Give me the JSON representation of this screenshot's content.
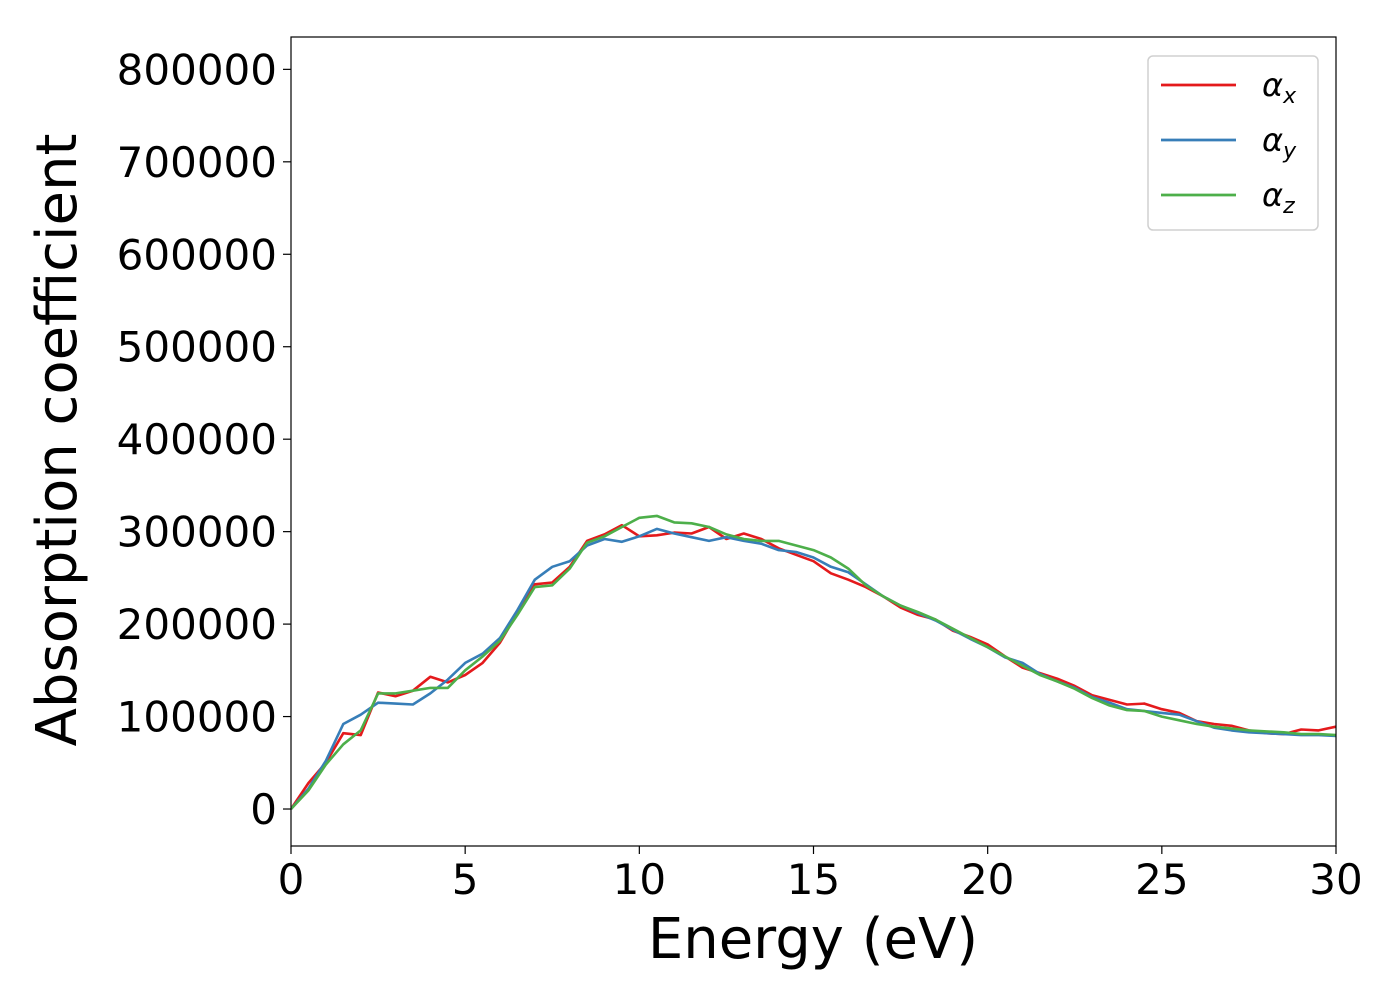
{
  "chart_data": {
    "type": "line",
    "title": "",
    "xlabel": "Energy (eV)",
    "ylabel": "Absorption coefficient",
    "xlim": [
      0,
      30
    ],
    "ylim": [
      -40000,
      835000
    ],
    "xticks": [
      0,
      5,
      10,
      15,
      20,
      25,
      30
    ],
    "yticks": [
      0,
      100000,
      200000,
      300000,
      400000,
      500000,
      600000,
      700000,
      800000
    ],
    "grid": false,
    "legend_position": "top-right",
    "x": [
      0,
      0.5,
      1,
      1.5,
      2,
      2.5,
      3,
      3.5,
      4,
      4.5,
      5,
      5.5,
      6,
      6.5,
      7,
      7.5,
      8,
      8.5,
      9,
      9.5,
      10,
      10.5,
      11,
      11.5,
      12,
      12.5,
      13,
      13.5,
      14,
      14.5,
      15,
      15.5,
      16,
      16.5,
      17,
      17.5,
      18,
      18.5,
      19,
      19.5,
      20,
      20.5,
      21,
      21.5,
      22,
      22.5,
      23,
      23.5,
      24,
      24.5,
      25,
      25.5,
      26,
      26.5,
      27,
      27.5,
      28,
      28.5,
      29,
      29.5,
      30
    ],
    "series": [
      {
        "name": "α",
        "subscript": "x",
        "color": "#e41a1c",
        "values": [
          0,
          28000,
          50000,
          82000,
          80000,
          126000,
          122000,
          128000,
          143000,
          137000,
          145000,
          158000,
          180000,
          212000,
          243000,
          245000,
          262000,
          290000,
          297000,
          307000,
          295000,
          296000,
          299000,
          298000,
          305000,
          292000,
          298000,
          292000,
          282000,
          275000,
          268000,
          255000,
          248000,
          240000,
          230000,
          218000,
          210000,
          205000,
          193000,
          186000,
          178000,
          165000,
          153000,
          147000,
          141000,
          133000,
          123000,
          118000,
          113000,
          114000,
          108000,
          104000,
          95000,
          92000,
          90000,
          85000,
          82000,
          81000,
          86000,
          85000,
          89000
        ]
      },
      {
        "name": "α",
        "subscript": "y",
        "color": "#377eb8",
        "values": [
          0,
          22000,
          52000,
          92000,
          102000,
          115000,
          114000,
          113000,
          125000,
          140000,
          158000,
          168000,
          185000,
          215000,
          248000,
          262000,
          268000,
          285000,
          292000,
          289000,
          295000,
          303000,
          298000,
          294000,
          290000,
          294000,
          290000,
          287000,
          280000,
          278000,
          272000,
          262000,
          256000,
          243000,
          230000,
          220000,
          212000,
          204000,
          194000,
          184000,
          175000,
          164000,
          158000,
          146000,
          138000,
          131000,
          121000,
          115000,
          108000,
          106000,
          104000,
          102000,
          95000,
          88000,
          85000,
          83000,
          82000,
          81000,
          80000,
          80000,
          79000
        ]
      },
      {
        "name": "α",
        "subscript": "z",
        "color": "#4daf4a",
        "values": [
          0,
          20000,
          48000,
          70000,
          85000,
          125000,
          125000,
          128000,
          131000,
          131000,
          150000,
          165000,
          182000,
          210000,
          240000,
          242000,
          260000,
          288000,
          295000,
          305000,
          315000,
          317000,
          310000,
          309000,
          305000,
          297000,
          292000,
          290000,
          290000,
          285000,
          280000,
          272000,
          260000,
          242000,
          230000,
          220000,
          213000,
          205000,
          195000,
          185000,
          175000,
          165000,
          155000,
          145000,
          138000,
          130000,
          120000,
          112000,
          107000,
          106000,
          100000,
          96000,
          92000,
          89000,
          87000,
          85000,
          84000,
          83000,
          81000,
          81000,
          80000
        ]
      }
    ]
  }
}
